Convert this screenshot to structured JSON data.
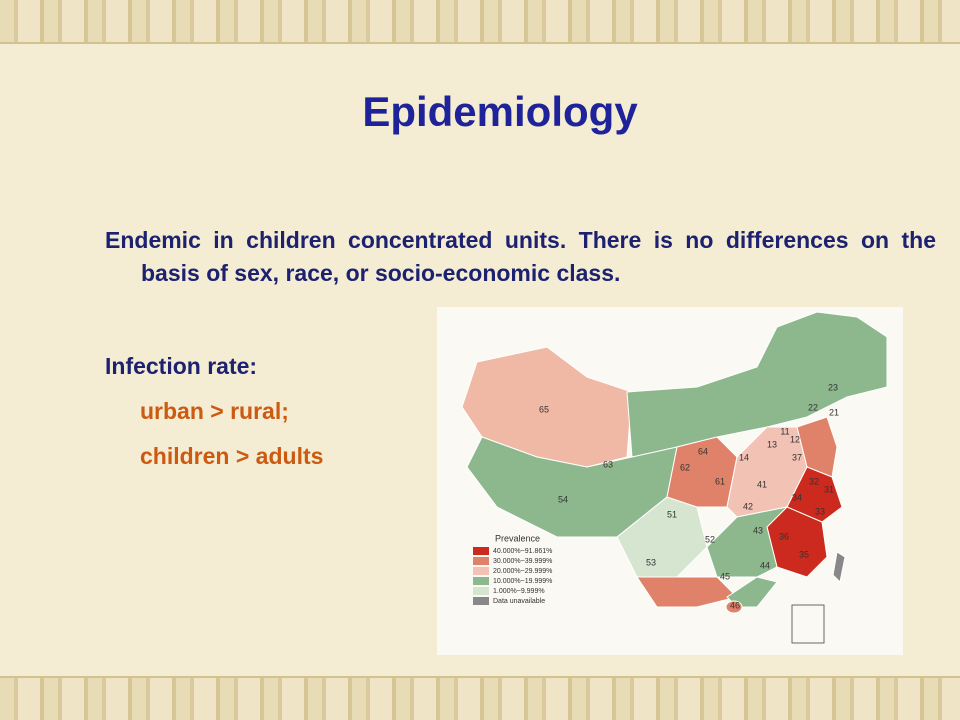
{
  "header": {
    "title": "Epidemiology"
  },
  "body": {
    "paragraph": "Endemic in children concentrated units. There is no differences on the basis of sex, race, or socio-economic class.",
    "label": "Infection rate:",
    "items": [
      "urban > rural;",
      "children > adults"
    ]
  },
  "map": {
    "legend": {
      "title": "Prevalence",
      "entries": [
        "40.000%~91.861%",
        "30.000%~39.999%",
        "20.000%~29.999%",
        "10.000%~19.999%",
        "1.000%~9.999%",
        "Data unavailable"
      ]
    },
    "region_labels": [
      "65",
      "23",
      "22",
      "21",
      "11",
      "12",
      "13",
      "37",
      "64",
      "14",
      "62",
      "63",
      "61",
      "41",
      "34",
      "32",
      "54",
      "42",
      "51",
      "36",
      "33",
      "52",
      "35",
      "53",
      "45",
      "44",
      "46",
      "43",
      "31"
    ]
  }
}
